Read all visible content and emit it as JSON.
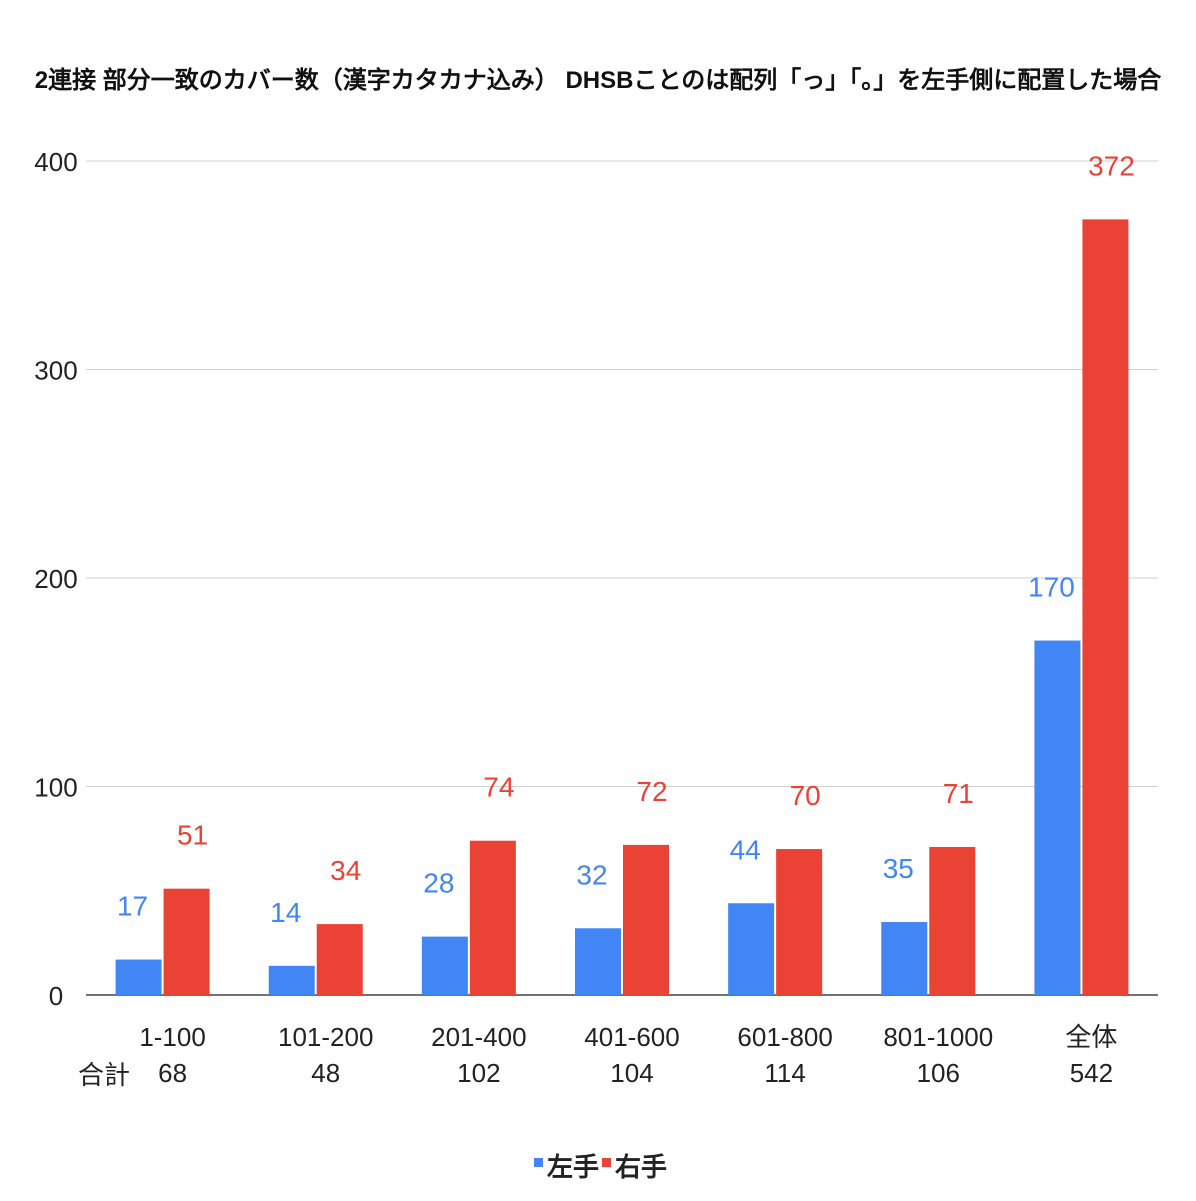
{
  "chart_data": {
    "type": "bar",
    "title": "2連接 部分一致のカバー数（漢字カタカナ込み） DHSBことのは配列「っ」「。」を左手側に配置した場合",
    "categories": [
      "1-100",
      "101-200",
      "201-400",
      "401-600",
      "601-800",
      "801-1000",
      "全体"
    ],
    "totals_label": "合計",
    "totals": [
      "68",
      "48",
      "102",
      "104",
      "114",
      "106",
      "542"
    ],
    "series": [
      {
        "name": "左手",
        "color": "#4285f4",
        "values": [
          17,
          14,
          28,
          32,
          44,
          35,
          170
        ]
      },
      {
        "name": "右手",
        "color": "#ea4335",
        "values": [
          51,
          34,
          74,
          72,
          70,
          71,
          372
        ]
      }
    ],
    "yticks": [
      "0",
      "100",
      "200",
      "300",
      "400"
    ],
    "ylim": [
      0,
      400
    ],
    "grid": true,
    "legend_position": "bottom"
  }
}
